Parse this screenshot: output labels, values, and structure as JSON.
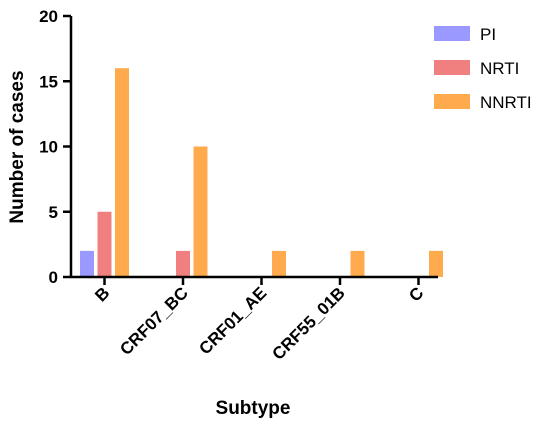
{
  "chart_data": {
    "type": "bar",
    "categories": [
      "B",
      "CRF07_BC",
      "CRF01_AE",
      "CRF55_01B",
      "C"
    ],
    "series": [
      {
        "name": "PI",
        "color": "#9999ff",
        "values": [
          2,
          0,
          0,
          0,
          0
        ]
      },
      {
        "name": "NRTI",
        "color": "#f08080",
        "values": [
          5,
          2,
          0,
          0,
          0
        ]
      },
      {
        "name": "NNRTI",
        "color": "#ffaa4d",
        "values": [
          16,
          10,
          2,
          2,
          2
        ]
      }
    ],
    "title": "",
    "xlabel": "Subtype",
    "ylabel": "Number of cases",
    "ylim": [
      0,
      20
    ],
    "yticks": [
      0,
      5,
      10,
      15,
      20
    ],
    "grid": false,
    "legend_position": "top-right"
  }
}
